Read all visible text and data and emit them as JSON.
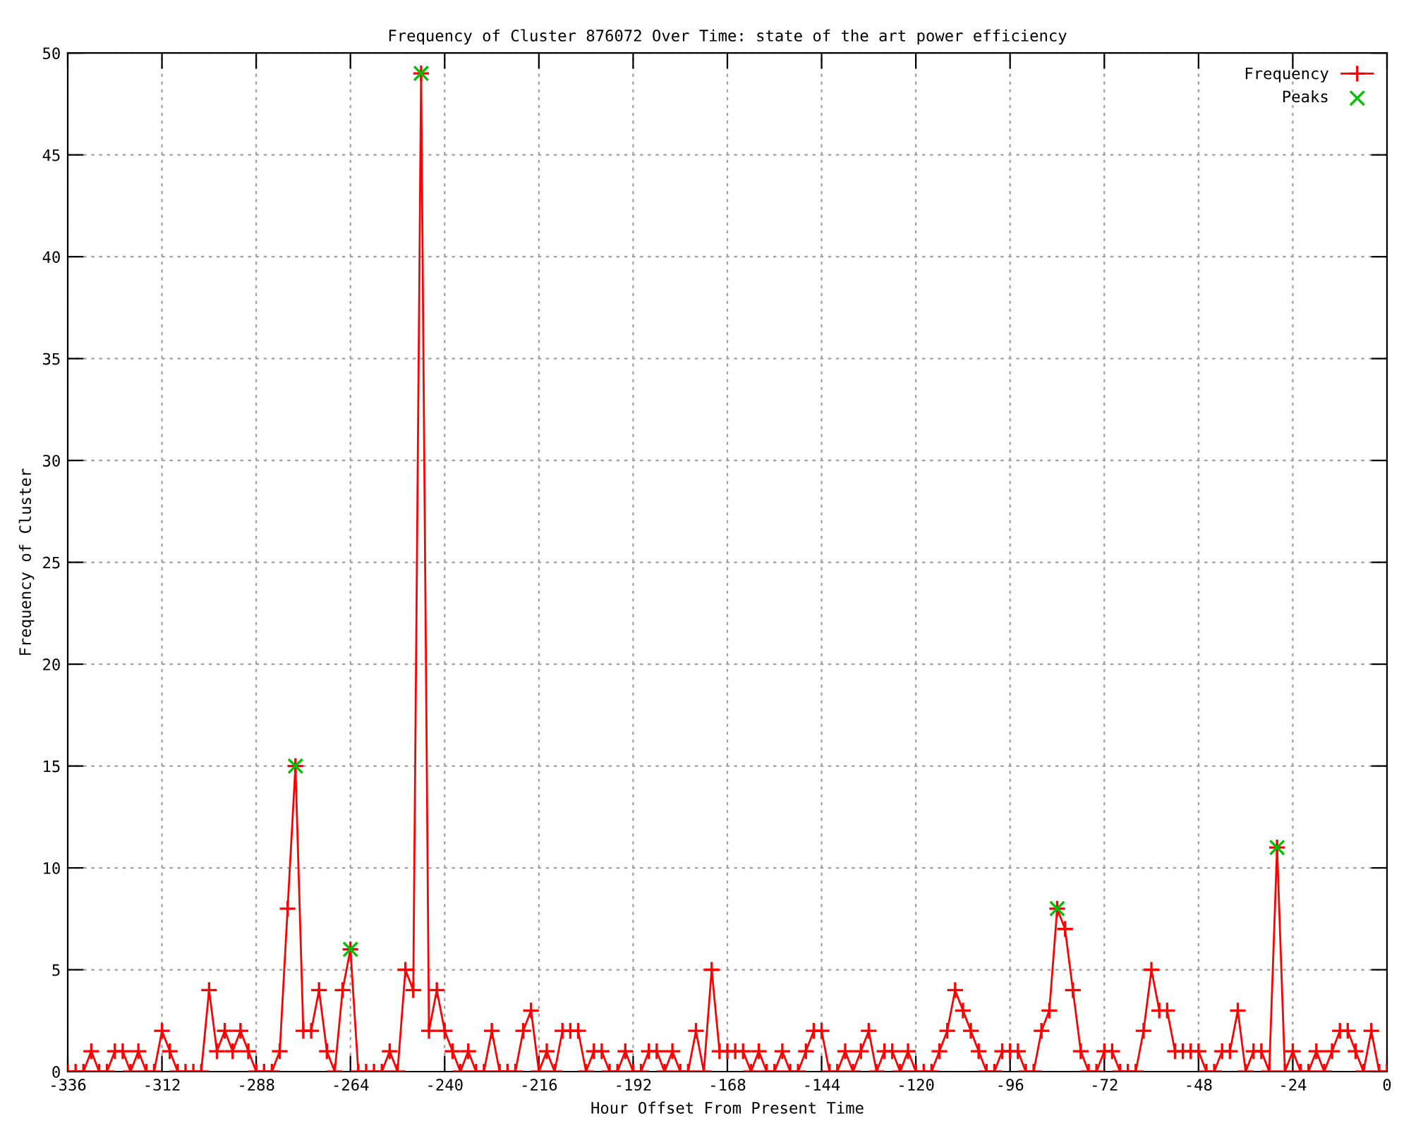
{
  "chart_data": {
    "type": "line",
    "title": "Frequency of Cluster 876072 Over Time: state of the art power efficiency",
    "xlabel": "Hour Offset From Present Time",
    "ylabel": "Frequency of Cluster",
    "xlim": [
      -336,
      0
    ],
    "xticks": [
      -336,
      -312,
      -288,
      -264,
      -240,
      -216,
      -192,
      -168,
      -144,
      -120,
      -96,
      -72,
      -48,
      -24,
      0
    ],
    "ylim": [
      0,
      50
    ],
    "yticks": [
      0,
      5,
      10,
      15,
      20,
      25,
      30,
      35,
      40,
      45,
      50
    ],
    "grid": true,
    "legend": "top right",
    "series": [
      {
        "name": "Frequency",
        "color": "#ff0000",
        "marker": "cross",
        "line_style": "solid",
        "x": [
          -336,
          -334,
          -332,
          -330,
          -328,
          -326,
          -324,
          -322,
          -320,
          -318,
          -316,
          -314,
          -312,
          -310,
          -308,
          -306,
          -304,
          -302,
          -300,
          -298,
          -296,
          -294,
          -292,
          -290,
          -288,
          -286,
          -284,
          -282,
          -280,
          -278,
          -276,
          -274,
          -272,
          -270,
          -268,
          -266,
          -264,
          -262,
          -260,
          -258,
          -256,
          -254,
          -252,
          -250,
          -248,
          -246,
          -244,
          -242,
          -240,
          -238,
          -236,
          -234,
          -232,
          -230,
          -228,
          -226,
          -224,
          -222,
          -220,
          -218,
          -216,
          -214,
          -212,
          -210,
          -208,
          -206,
          -204,
          -202,
          -200,
          -198,
          -196,
          -194,
          -192,
          -190,
          -188,
          -186,
          -184,
          -182,
          -180,
          -178,
          -176,
          -174,
          -172,
          -170,
          -168,
          -166,
          -164,
          -162,
          -160,
          -158,
          -156,
          -154,
          -152,
          -150,
          -148,
          -146,
          -144,
          -142,
          -140,
          -138,
          -136,
          -134,
          -132,
          -130,
          -128,
          -126,
          -124,
          -122,
          -120,
          -118,
          -116,
          -114,
          -112,
          -110,
          -108,
          -106,
          -104,
          -102,
          -100,
          -98,
          -96,
          -94,
          -92,
          -90,
          -88,
          -86,
          -84,
          -82,
          -80,
          -78,
          -76,
          -74,
          -72,
          -70,
          -68,
          -66,
          -64,
          -62,
          -60,
          -58,
          -56,
          -54,
          -52,
          -50,
          -48,
          -46,
          -44,
          -42,
          -40,
          -38,
          -36,
          -34,
          -32,
          -30,
          -28,
          -26,
          -24,
          -22,
          -20,
          -18,
          -16,
          -14,
          -12,
          -10,
          -8,
          -6,
          -4,
          -2,
          0
        ],
        "values": [
          0,
          0,
          0,
          1,
          0,
          0,
          1,
          1,
          0,
          1,
          0,
          0,
          2,
          1,
          0,
          0,
          0,
          0,
          4,
          1,
          2,
          1,
          2,
          1,
          0,
          0,
          0,
          1,
          8,
          15,
          2,
          2,
          4,
          1,
          0,
          4,
          6,
          0,
          0,
          0,
          0,
          1,
          0,
          5,
          4,
          49,
          2,
          4,
          2,
          1,
          0,
          1,
          0,
          0,
          2,
          0,
          0,
          0,
          2,
          3,
          0,
          1,
          0,
          2,
          2,
          2,
          0,
          1,
          1,
          0,
          0,
          1,
          0,
          0,
          1,
          1,
          0,
          1,
          0,
          0,
          2,
          0,
          5,
          1,
          1,
          1,
          1,
          0,
          1,
          0,
          0,
          1,
          0,
          0,
          1,
          2,
          2,
          0,
          0,
          1,
          0,
          1,
          2,
          0,
          1,
          1,
          0,
          1,
          0,
          0,
          0,
          1,
          2,
          4,
          3,
          2,
          1,
          0,
          0,
          1,
          1,
          1,
          0,
          0,
          2,
          3,
          8,
          7,
          4,
          1,
          0,
          0,
          1,
          1,
          0,
          0,
          0,
          2,
          5,
          3,
          3,
          1,
          1,
          1,
          1,
          0,
          0,
          1,
          1,
          3,
          0,
          1,
          1,
          0,
          11,
          0,
          1,
          0,
          0,
          1,
          0,
          1,
          2,
          2,
          1,
          0,
          2,
          0,
          0
        ]
      },
      {
        "name": "Peaks",
        "type": "scatter",
        "color": "#00c000",
        "marker": "cross",
        "x": [
          -278,
          -264,
          -246,
          -84,
          -28
        ],
        "values": [
          15,
          6,
          49,
          8,
          11
        ]
      }
    ]
  }
}
